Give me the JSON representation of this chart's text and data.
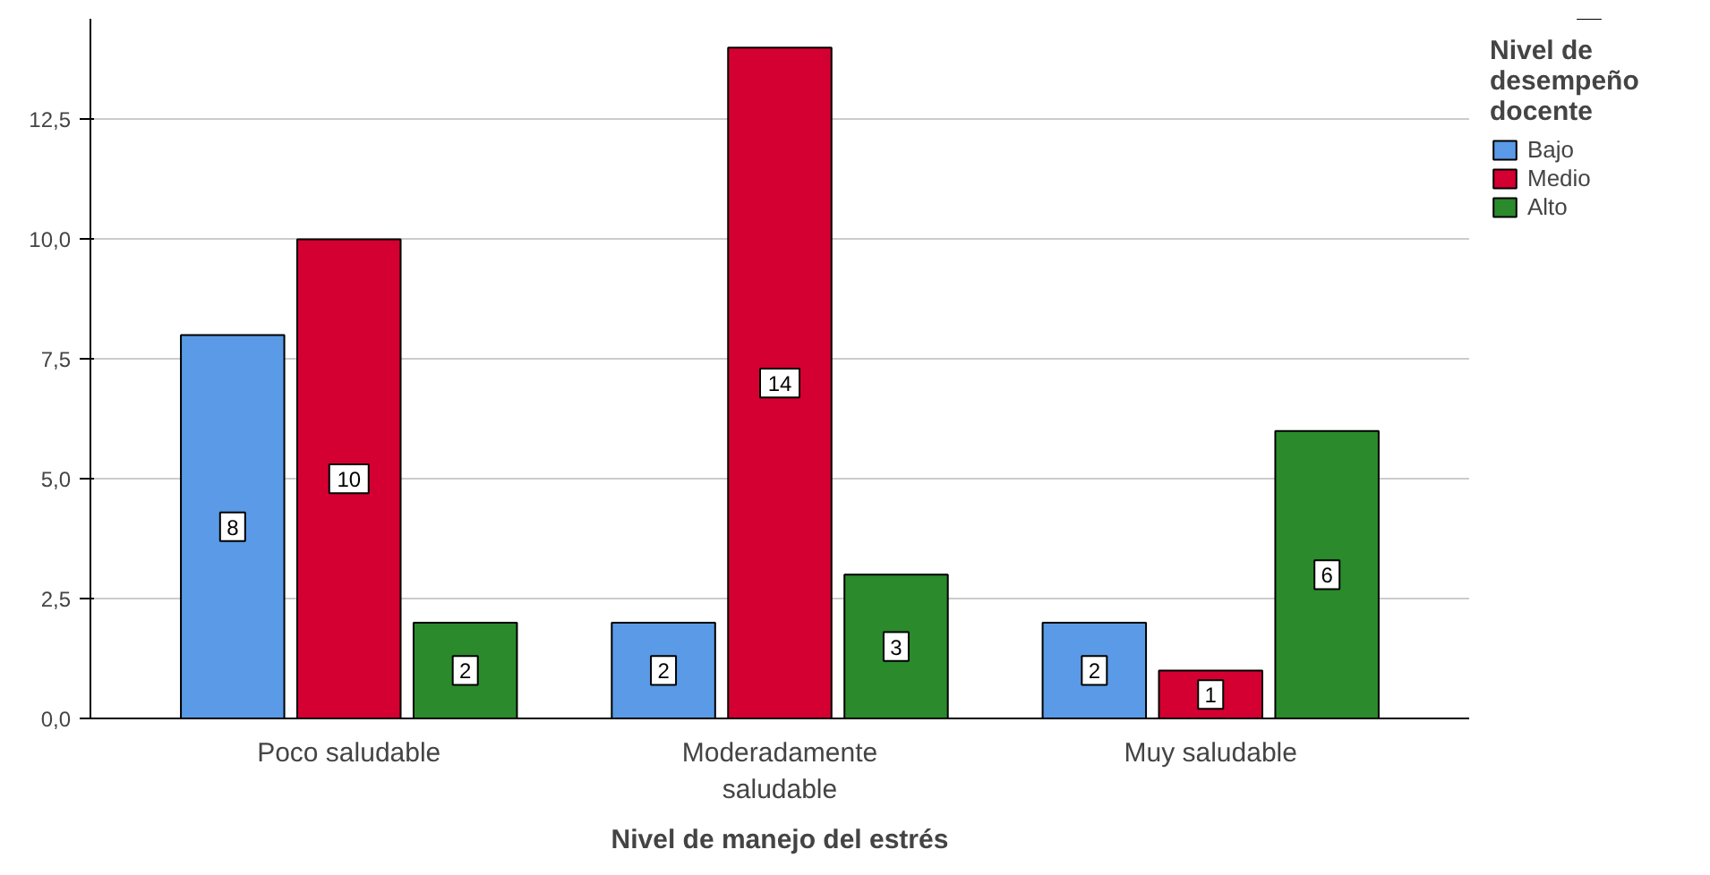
{
  "chart_data": {
    "type": "bar",
    "xlabel": "Nivel de manejo del estrés",
    "legend_title": "Nivel de desempeño docente",
    "categories": [
      "Poco saludable",
      "Moderadamente saludable",
      "Muy saludable"
    ],
    "series": [
      {
        "name": "Bajo",
        "color": "#5a9ae6",
        "values": [
          8,
          2,
          2
        ]
      },
      {
        "name": "Medio",
        "color": "#d40032",
        "values": [
          10,
          14,
          1
        ]
      },
      {
        "name": "Alto",
        "color": "#2b8a2b",
        "values": [
          2,
          3,
          6
        ]
      }
    ],
    "ylim": [
      0,
      14.6
    ],
    "yticks": [
      {
        "value": 0,
        "label": "0,0"
      },
      {
        "value": 2.5,
        "label": "2,5"
      },
      {
        "value": 5,
        "label": "5,0"
      },
      {
        "value": 7.5,
        "label": "7,5"
      },
      {
        "value": 10,
        "label": "10,0"
      },
      {
        "value": 12.5,
        "label": "12,5"
      }
    ],
    "grid": "y",
    "legend": "top right",
    "data_labels": true
  }
}
